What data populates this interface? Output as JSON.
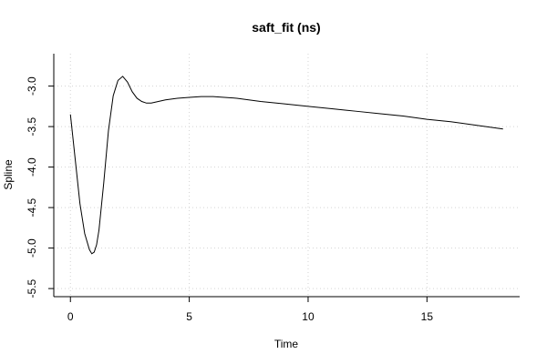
{
  "chart_data": {
    "type": "line",
    "title": "saft_fit (ns)",
    "xlabel": "Time",
    "ylabel": "Spline",
    "xlim": [
      -0.7,
      18.9
    ],
    "ylim": [
      -5.6,
      -2.6
    ],
    "x_ticks": [
      0,
      5,
      10,
      15
    ],
    "y_ticks": [
      -3.0,
      -3.5,
      -4.0,
      -4.5,
      -5.0,
      -5.5
    ],
    "x_tick_labels": [
      "0",
      "5",
      "10",
      "15"
    ],
    "y_tick_labels": [
      "-3.0",
      "-3.5",
      "-4.0",
      "-4.5",
      "-5.0",
      "-5.5"
    ],
    "grid": true,
    "series": [
      {
        "color": "#000000",
        "x": [
          0.0,
          0.2,
          0.4,
          0.6,
          0.8,
          0.9,
          1.0,
          1.1,
          1.2,
          1.4,
          1.6,
          1.8,
          2.0,
          2.2,
          2.4,
          2.6,
          2.8,
          3.0,
          3.2,
          3.4,
          3.7,
          4.0,
          4.5,
          5.0,
          5.5,
          6.0,
          7.0,
          8.0,
          9.0,
          10.0,
          11.0,
          12.0,
          13.0,
          14.0,
          15.0,
          16.0,
          17.0,
          18.2
        ],
        "y": [
          -3.35,
          -3.9,
          -4.45,
          -4.82,
          -5.02,
          -5.07,
          -5.05,
          -4.96,
          -4.78,
          -4.2,
          -3.55,
          -3.12,
          -2.93,
          -2.88,
          -2.95,
          -3.07,
          -3.15,
          -3.19,
          -3.21,
          -3.21,
          -3.19,
          -3.17,
          -3.15,
          -3.14,
          -3.13,
          -3.13,
          -3.15,
          -3.19,
          -3.22,
          -3.25,
          -3.28,
          -3.31,
          -3.34,
          -3.37,
          -3.41,
          -3.44,
          -3.48,
          -3.53
        ]
      }
    ]
  }
}
